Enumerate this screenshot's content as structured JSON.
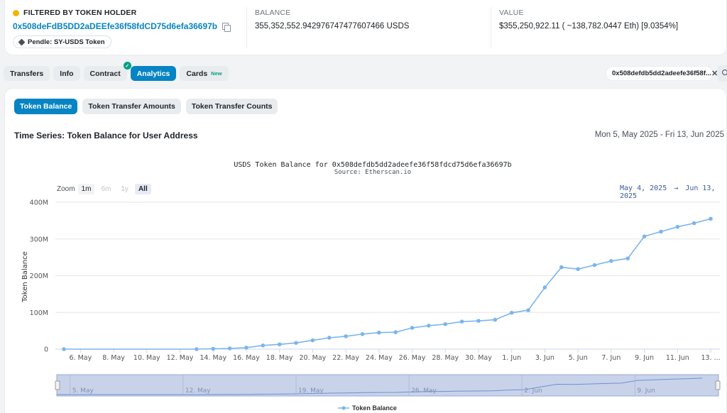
{
  "header": {
    "filter_label": "FILTERED BY TOKEN HOLDER",
    "address": "0x508deFdB5DD2aDEEfe36f58fdCD75d6efa36697b",
    "tag": "Pendle: SY-USDS Token",
    "balance_label": "BALANCE",
    "balance_value": "355,352,552.942976747477607466 USDS",
    "value_label": "VALUE",
    "value_value": "$355,250,922.11 ( ~138,782.0447 Eth) [9.0354%]"
  },
  "tabs": [
    {
      "label": "Transfers"
    },
    {
      "label": "Info"
    },
    {
      "label": "Contract"
    },
    {
      "label": "Analytics"
    },
    {
      "label": "Cards",
      "badge": "New"
    }
  ],
  "filter_chip": {
    "text": "0x508defdb5dd2adeefe36f58f..."
  },
  "subtabs": [
    {
      "label": "Token Balance"
    },
    {
      "label": "Token Transfer Amounts"
    },
    {
      "label": "Token Transfer Counts"
    }
  ],
  "section": {
    "title": "Time Series: Token Balance for User Address",
    "date_range": "Mon 5, May 2025 - Fri 13, Jun 2025"
  },
  "zoom": {
    "label": "Zoom",
    "options": [
      "1m",
      "6m",
      "1y",
      "All"
    ],
    "selected": "All",
    "range_from": "May 4, 2025",
    "range_arrow": "→",
    "range_to": "Jun 13, 2025"
  },
  "colors": {
    "accent": "#0784c3",
    "series": "#7cb5ec",
    "navigator_fill": "#c8d3ea"
  },
  "chart_data": {
    "type": "line",
    "title": "USDS Token Balance for 0x508defdb5dd2adeefe36f58fdcd75d6efa36697b",
    "subtitle": "Source: Etherscan.io",
    "ylabel": "Token Balance",
    "y_ticks": [
      "0",
      "100M",
      "200M",
      "300M",
      "400M"
    ],
    "ylim": [
      0,
      400000000
    ],
    "x_ticks": [
      "6. May",
      "8. May",
      "10. May",
      "12. May",
      "14. May",
      "16. May",
      "18. May",
      "20. May",
      "22. May",
      "24. May",
      "26. May",
      "28. May",
      "30. May",
      "1. Jun",
      "3. Jun",
      "5. Jun",
      "7. Jun",
      "9. Jun",
      "11. Jun",
      "13. ..."
    ],
    "navigator_ticks": [
      "5. May",
      "12. May",
      "19. May",
      "26. May",
      "2. Jun",
      "9. Jun"
    ],
    "legend": "Token Balance",
    "series": [
      {
        "name": "Token Balance",
        "x": [
          "2025-05-05",
          "2025-05-13",
          "2025-05-14",
          "2025-05-15",
          "2025-05-16",
          "2025-05-17",
          "2025-05-18",
          "2025-05-19",
          "2025-05-20",
          "2025-05-21",
          "2025-05-22",
          "2025-05-23",
          "2025-05-24",
          "2025-05-25",
          "2025-05-26",
          "2025-05-27",
          "2025-05-28",
          "2025-05-29",
          "2025-05-30",
          "2025-05-31",
          "2025-06-01",
          "2025-06-02",
          "2025-06-03",
          "2025-06-04",
          "2025-06-05",
          "2025-06-06",
          "2025-06-07",
          "2025-06-08",
          "2025-06-09",
          "2025-06-10",
          "2025-06-11",
          "2025-06-12",
          "2025-06-13"
        ],
        "values": [
          0,
          0,
          1000000,
          2000000,
          4000000,
          10000000,
          13000000,
          17000000,
          24000000,
          31000000,
          35000000,
          41000000,
          45000000,
          46000000,
          58000000,
          64000000,
          68000000,
          75000000,
          77000000,
          80000000,
          99000000,
          106000000,
          168000000,
          223000000,
          218000000,
          229000000,
          240000000,
          247000000,
          307000000,
          320000000,
          333000000,
          343000000,
          355000000
        ]
      }
    ]
  }
}
